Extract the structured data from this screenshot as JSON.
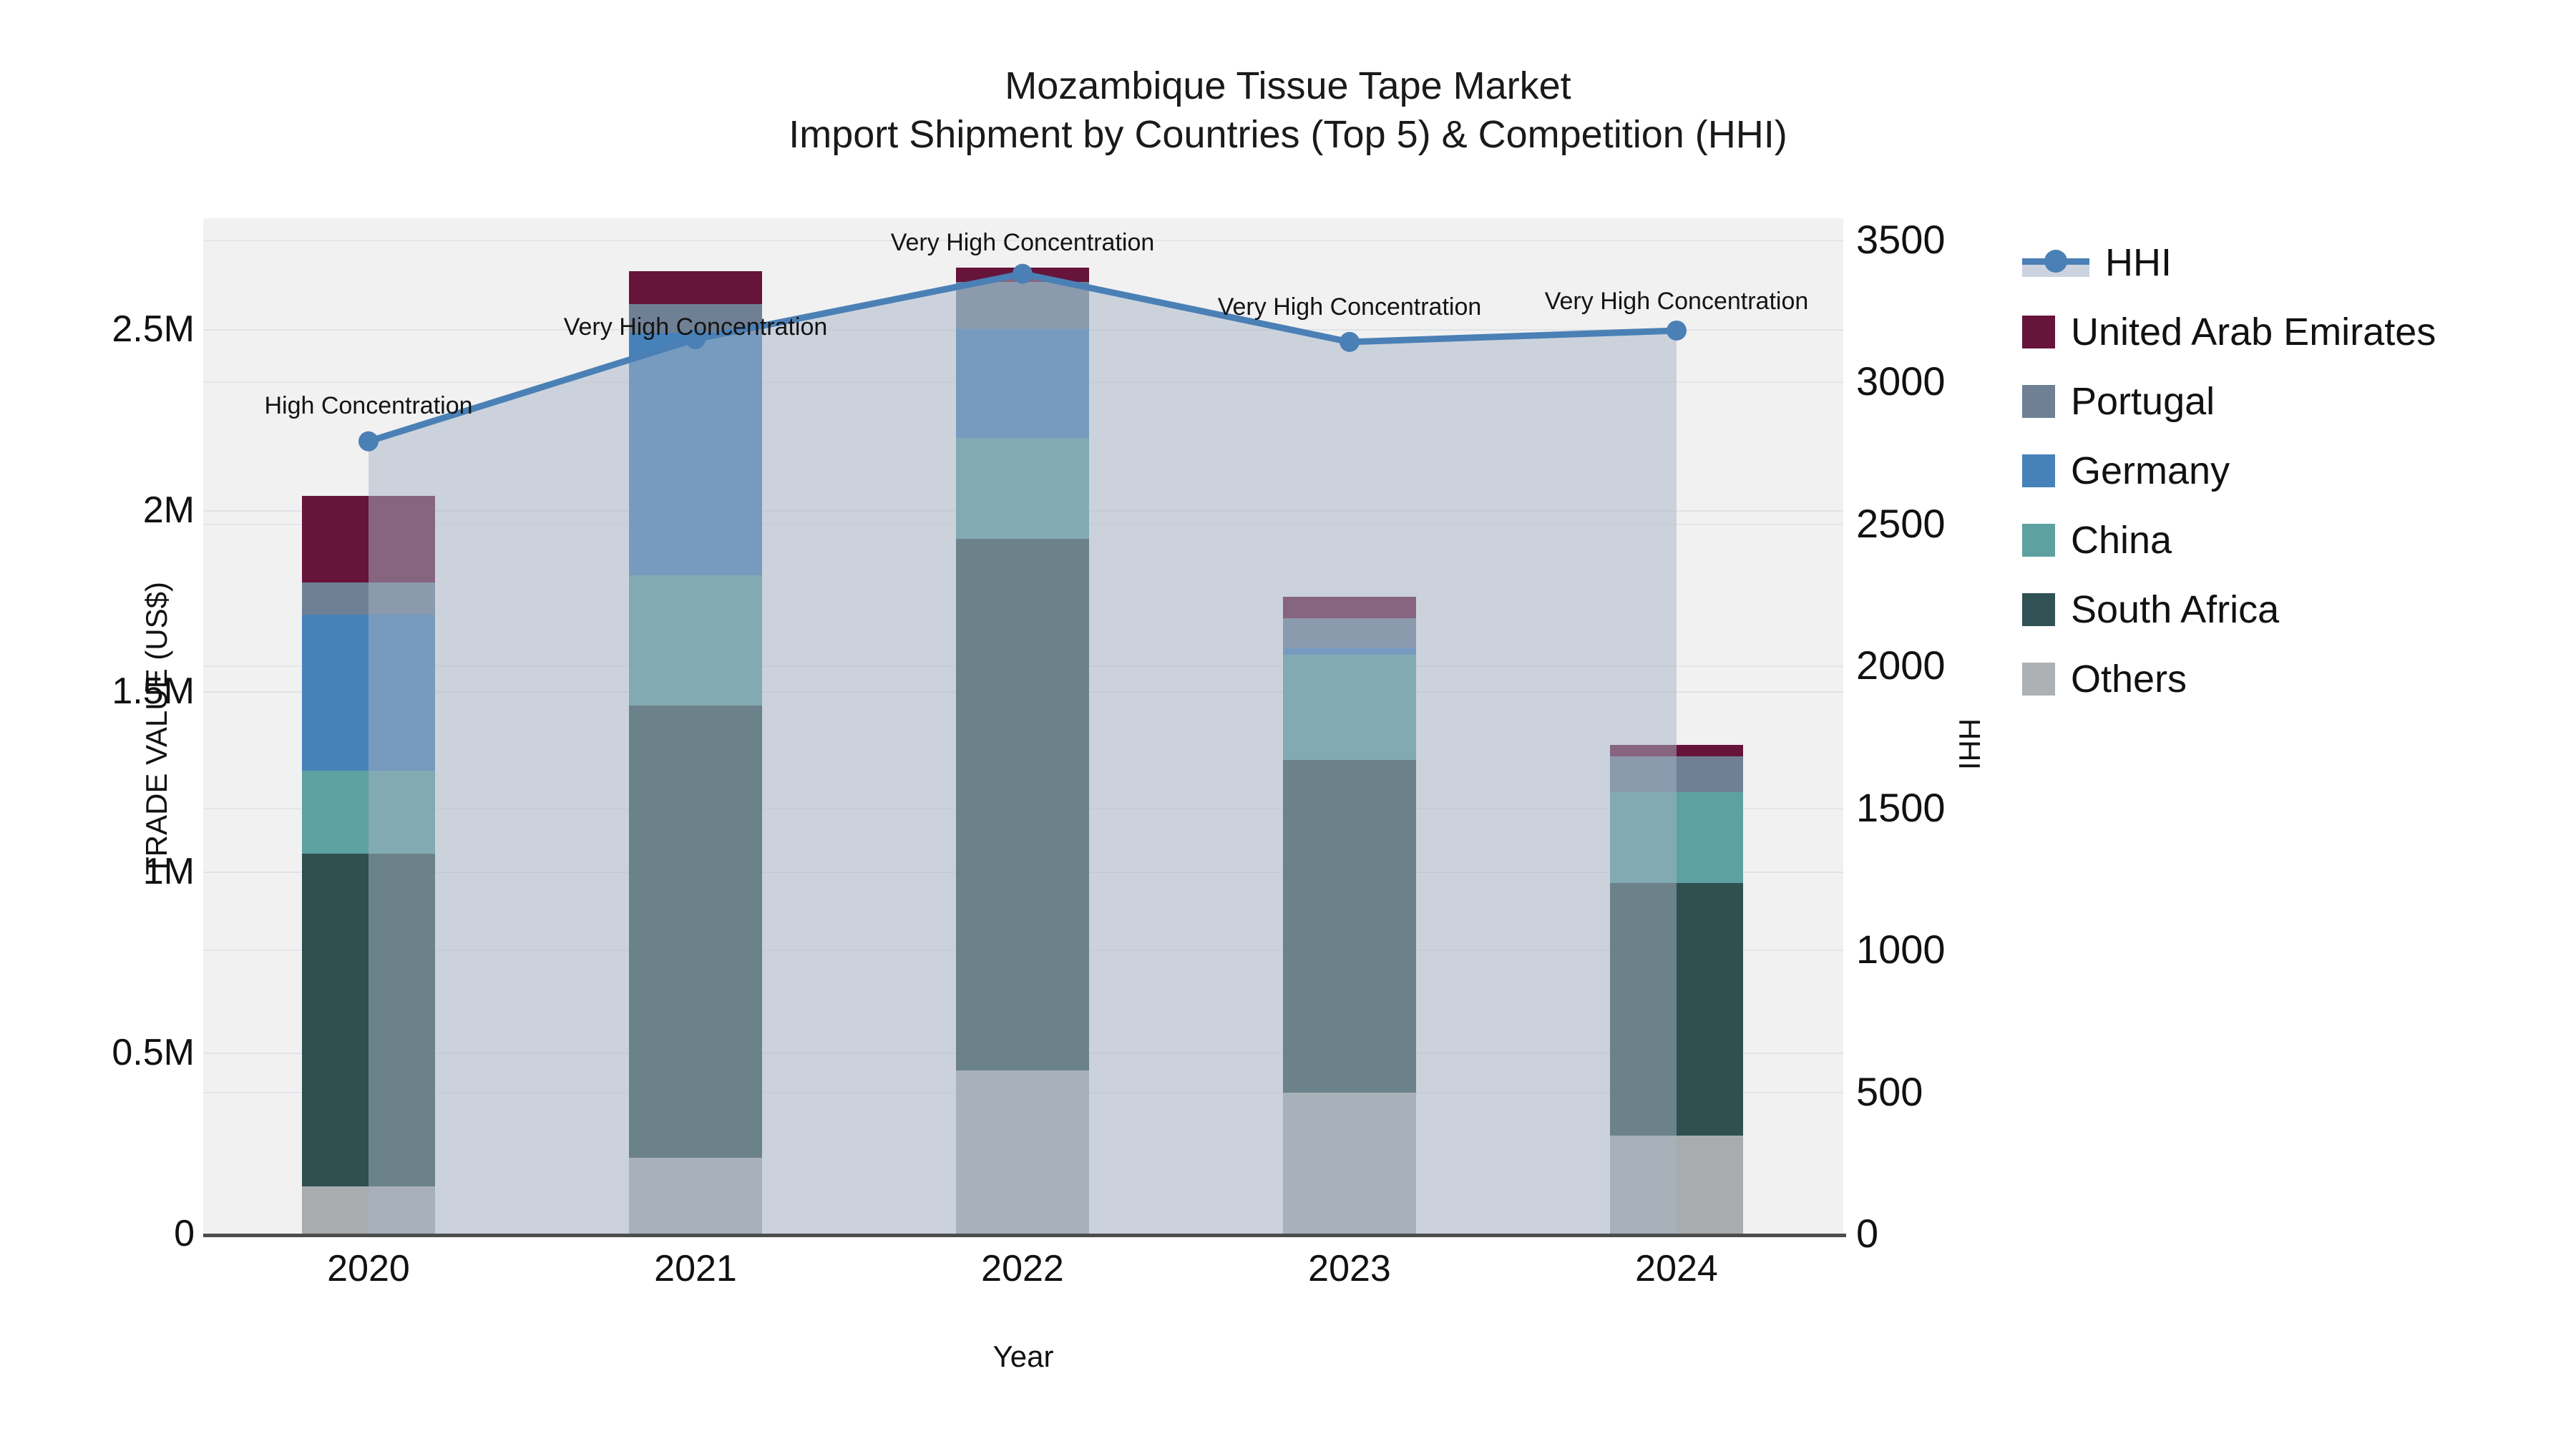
{
  "title": {
    "line1": "Mozambique Tissue Tape Market",
    "line2": "Import Shipment by Countries (Top 5) & Competition (HHI)"
  },
  "axes": {
    "y_left": {
      "label": "TRADE VALUE (US$)",
      "ticks": [
        {
          "value": 0,
          "label": "0"
        },
        {
          "value": 0.5,
          "label": "0.5M"
        },
        {
          "value": 1.0,
          "label": "1M"
        },
        {
          "value": 1.5,
          "label": "1.5M"
        },
        {
          "value": 2.0,
          "label": "2M"
        },
        {
          "value": 2.5,
          "label": "2.5M"
        }
      ],
      "range": [
        0,
        2.8
      ]
    },
    "y_right": {
      "label": "HHI",
      "ticks": [
        {
          "value": 0,
          "label": "0"
        },
        {
          "value": 500,
          "label": "500"
        },
        {
          "value": 1000,
          "label": "1000"
        },
        {
          "value": 1500,
          "label": "1500"
        },
        {
          "value": 2000,
          "label": "2000"
        },
        {
          "value": 2500,
          "label": "2500"
        },
        {
          "value": 3000,
          "label": "3000"
        },
        {
          "value": 3500,
          "label": "3500"
        }
      ],
      "range": [
        0,
        3571
      ]
    },
    "x": {
      "label": "Year"
    }
  },
  "chart_data": {
    "type": "combo-stacked-bar-line",
    "categories": [
      "2020",
      "2021",
      "2022",
      "2023",
      "2024"
    ],
    "bar_unit": "million US$",
    "series": [
      {
        "name": "Others",
        "color": "#a9acae",
        "values": [
          0.13,
          0.21,
          0.45,
          0.39,
          0.27
        ]
      },
      {
        "name": "South Africa",
        "color": "#2f504f",
        "values": [
          0.92,
          1.25,
          1.47,
          0.92,
          0.7
        ]
      },
      {
        "name": "China",
        "color": "#5da1a1",
        "values": [
          0.23,
          0.36,
          0.28,
          0.29,
          0.25
        ]
      },
      {
        "name": "Germany",
        "color": "#4682b9",
        "values": [
          0.43,
          0.67,
          0.3,
          0.02,
          0.0
        ]
      },
      {
        "name": "Portugal",
        "color": "#6f8095",
        "values": [
          0.09,
          0.08,
          0.13,
          0.08,
          0.1
        ]
      },
      {
        "name": "United Arab Emirates",
        "color": "#66143a",
        "values": [
          0.24,
          0.09,
          0.04,
          0.06,
          0.03
        ]
      }
    ],
    "line": {
      "name": "HHI",
      "color": "#4a80b5",
      "area_fill": "rgba(168,179,197,0.50)",
      "values": [
        2790,
        3150,
        3380,
        3140,
        3180
      ]
    },
    "annotations": [
      {
        "text": "High Concentration",
        "dy": -50
      },
      {
        "text": "Very High Concentration",
        "dy": -17
      },
      {
        "text": "Very High Concentration",
        "dy": -44
      },
      {
        "text": "Very High Concentration",
        "dy": -49
      },
      {
        "text": "Very High Concentration",
        "dy": -41
      }
    ],
    "grid": true,
    "legend_position": "right"
  },
  "legend": {
    "items": [
      {
        "label": "HHI",
        "swatch": "line",
        "color": "#4a80b5"
      },
      {
        "label": "United Arab Emirates",
        "swatch": "square",
        "color": "#66143a"
      },
      {
        "label": "Portugal",
        "swatch": "square",
        "color": "#6f8095"
      },
      {
        "label": "Germany",
        "swatch": "square",
        "color": "#4682b9"
      },
      {
        "label": "China",
        "swatch": "square",
        "color": "#5da1a1"
      },
      {
        "label": "South Africa",
        "swatch": "square",
        "color": "#315255"
      },
      {
        "label": "Others",
        "swatch": "square",
        "color": "#aeb1b3"
      }
    ]
  }
}
